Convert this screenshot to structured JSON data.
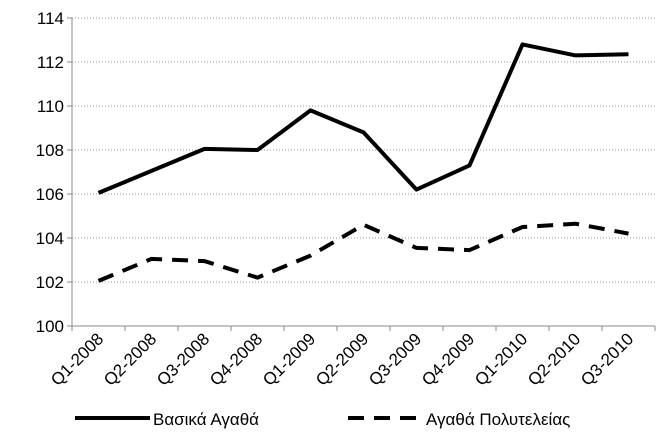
{
  "chart_data": {
    "type": "line",
    "categories": [
      "Q1-2008",
      "Q2-2008",
      "Q3-2008",
      "Q4-2008",
      "Q1-2009",
      "Q2-2009",
      "Q3-2009",
      "Q4-2009",
      "Q1-2010",
      "Q2-2010",
      "Q3-2010"
    ],
    "series": [
      {
        "name": "Βασικά Αγαθά",
        "color": "#000000",
        "dash": "solid",
        "values": [
          106.05,
          107.05,
          108.05,
          108.0,
          109.8,
          108.8,
          106.2,
          107.3,
          112.8,
          112.3,
          112.35
        ]
      },
      {
        "name": "Αγαθά Πολυτελείας",
        "color": "#000000",
        "dash": "dashed",
        "values": [
          102.05,
          103.05,
          102.95,
          102.2,
          103.2,
          104.6,
          103.55,
          103.45,
          104.5,
          104.65,
          104.2
        ]
      }
    ],
    "ylim": [
      100,
      114
    ],
    "yticks": [
      100,
      102,
      104,
      106,
      108,
      110,
      112,
      114
    ],
    "grid": true,
    "legend": "bottom"
  }
}
